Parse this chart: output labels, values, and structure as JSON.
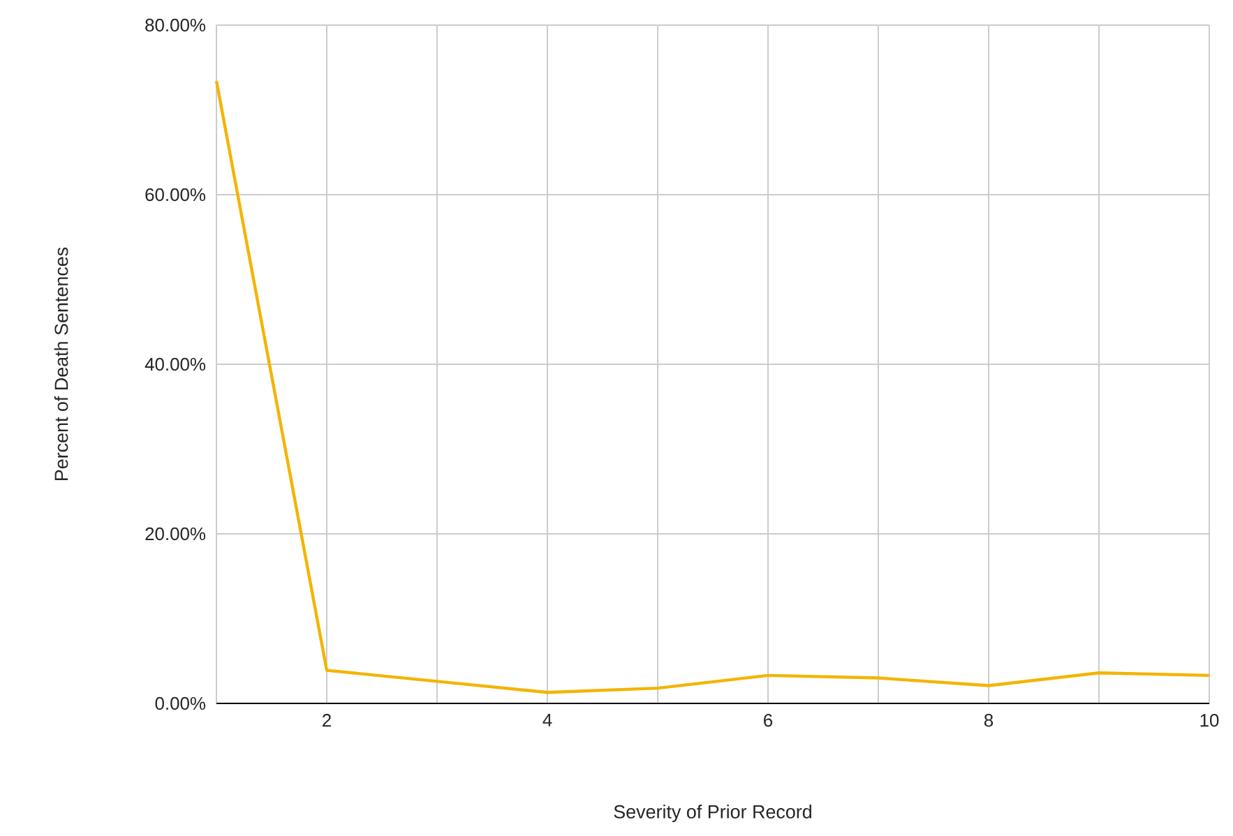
{
  "chart_data": {
    "type": "line",
    "xlabel": "Severity of Prior Record",
    "ylabel": "Percent of Death Sentences",
    "x": [
      1,
      2,
      3,
      4,
      5,
      6,
      7,
      8,
      9,
      10
    ],
    "series": [
      {
        "color": "#f4b400",
        "values": [
          73.4,
          3.9,
          2.6,
          1.3,
          1.8,
          3.3,
          3.0,
          2.1,
          3.6,
          3.3
        ]
      }
    ],
    "xlim": [
      1,
      10
    ],
    "xticks": [
      {
        "value": 1,
        "label": null
      },
      2,
      {
        "value": 3,
        "label": null
      },
      4,
      {
        "value": 5,
        "label": null
      },
      6,
      {
        "value": 7,
        "label": null
      },
      8,
      {
        "value": 9,
        "label": null
      },
      10
    ],
    "ylim": [
      0,
      80
    ],
    "yticks": [
      {
        "value": 0,
        "label": "0.00%"
      },
      {
        "value": 20,
        "label": "20.00%"
      },
      {
        "value": 40,
        "label": "40.00%"
      },
      {
        "value": 60,
        "label": "60.00%"
      },
      {
        "value": 80,
        "label": "80.00%"
      }
    ],
    "grid": true,
    "marker": "none",
    "line_style": "solid"
  }
}
